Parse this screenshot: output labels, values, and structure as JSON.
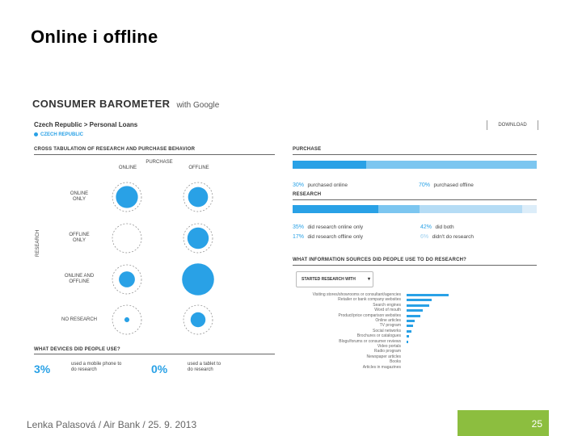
{
  "slide": {
    "title": "Online i offline",
    "footer": "Lenka Palasová / Air Bank / 25. 9. 2013",
    "page_number": "25"
  },
  "barometer": {
    "logo": "CONSUMER BAROMETER",
    "logo_suffix": "with Google",
    "breadcrumb": "Czech Republic > Personal Loans",
    "country": "CZECH REPUBLIC",
    "download_label": "DOWNLOAD"
  },
  "cross_tab": {
    "heading": "CROSS TABULATION OF RESEARCH AND PURCHASE BEHAVIOR",
    "purchase_label": "PURCHASE",
    "col_online": "ONLINE",
    "col_offline": "OFFLINE",
    "research_axis": "RESEARCH",
    "rows": [
      {
        "label_1": "ONLINE",
        "label_2": "ONLY",
        "online_size": 0.62,
        "offline_size": 0.56
      },
      {
        "label_1": "OFFLINE",
        "label_2": "ONLY",
        "online_size": 0.0,
        "offline_size": 0.6
      },
      {
        "label_1": "ONLINE AND",
        "label_2": "OFFLINE",
        "online_size": 0.45,
        "offline_size": 0.9
      },
      {
        "label_1": "NO RESEARCH",
        "label_2": "",
        "online_size": 0.14,
        "offline_size": 0.42
      }
    ]
  },
  "devices": {
    "heading": "WHAT DEVICES DID PEOPLE USE?",
    "mobile_pct": "3%",
    "mobile_text_1": "used a mobile phone to",
    "mobile_text_2": "do research",
    "tablet_pct": "0%",
    "tablet_text_1": "used a tablet to",
    "tablet_text_2": "do research"
  },
  "purchase": {
    "heading": "PURCHASE",
    "online_pct": "30%",
    "online_label": "purchased online",
    "offline_pct": "70%",
    "offline_label": "purchased offline",
    "online_share": 0.3
  },
  "research": {
    "heading": "RESEARCH",
    "online_only_pct": "35%",
    "online_only_label": "did research online only",
    "offline_only_pct": "17%",
    "offline_only_label": "did research offline only",
    "both_pct": "42%",
    "both_label": "did both",
    "none_pct": "6%",
    "none_label": "didn't do research",
    "segments": [
      0.35,
      0.17,
      0.42,
      0.06
    ],
    "colors": [
      "#29a1e6",
      "#7cc6f0",
      "#b5dcf5",
      "#dcedf9"
    ]
  },
  "sources": {
    "heading": "WHAT INFORMATION SOURCES DID PEOPLE USE TO DO RESEARCH?",
    "dropdown_label": "STARTED RESEARCH WITH",
    "items": [
      {
        "label": "Visiting stores/showrooms or consultant/agencies",
        "value": 0.92
      },
      {
        "label": "Retailer or bank company websites",
        "value": 0.55
      },
      {
        "label": "Search engines",
        "value": 0.5
      },
      {
        "label": "Word of mouth",
        "value": 0.36
      },
      {
        "label": "Product/price comparison websites",
        "value": 0.3
      },
      {
        "label": "Online articles",
        "value": 0.18
      },
      {
        "label": "TV program",
        "value": 0.14
      },
      {
        "label": "Social networks",
        "value": 0.1
      },
      {
        "label": "Brochures or catalogues",
        "value": 0.06
      },
      {
        "label": "Blogs/forums or consumer reviews",
        "value": 0.04
      },
      {
        "label": "Video portals",
        "value": 0.0
      },
      {
        "label": "Radio program",
        "value": 0.0
      },
      {
        "label": "Newspaper articles",
        "value": 0.0
      },
      {
        "label": "Books",
        "value": 0.0
      },
      {
        "label": "Articles in magazines",
        "value": 0.0
      }
    ]
  },
  "colors": {
    "accent": "#29a1e6",
    "light_accent": "#7cc6f0",
    "footer_green": "#8cbe3f"
  }
}
